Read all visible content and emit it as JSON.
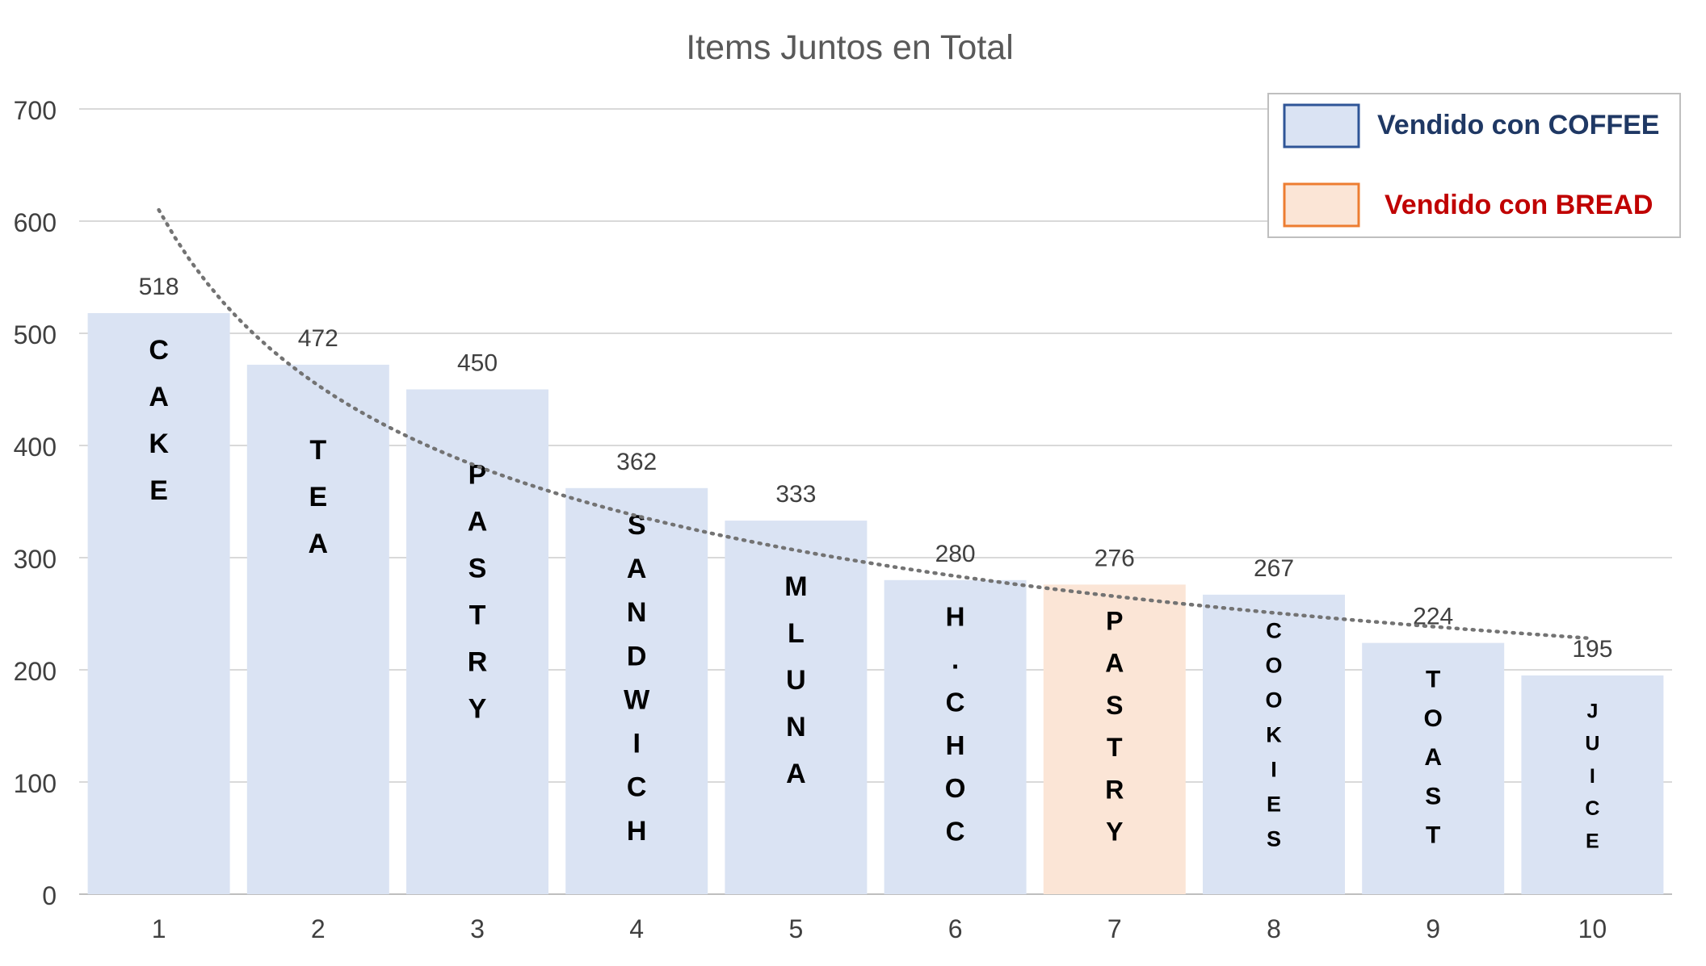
{
  "chart_data": {
    "type": "bar",
    "title": "Items Juntos en Total",
    "xlabel": "",
    "ylabel": "",
    "ylim": [
      0,
      700
    ],
    "yticks": [
      0,
      100,
      200,
      300,
      400,
      500,
      600,
      700
    ],
    "categories": [
      "1",
      "2",
      "3",
      "4",
      "5",
      "6",
      "7",
      "8",
      "9",
      "10"
    ],
    "values": [
      518,
      472,
      450,
      362,
      333,
      280,
      276,
      267,
      224,
      195
    ],
    "bar_labels": [
      "CAKE",
      "TEA",
      "PASTRY",
      "SANDWICH",
      "MLUNA",
      "H.CHOC",
      "PASTRY",
      "COOKIES",
      "TOAST",
      "JUICE"
    ],
    "bar_groups": [
      "coffee",
      "coffee",
      "coffee",
      "coffee",
      "coffee",
      "coffee",
      "bread",
      "coffee",
      "coffee",
      "coffee"
    ],
    "grid": true,
    "trendline": {
      "type": "power",
      "style": "dotted",
      "color": "#737373",
      "start_value": 610,
      "end_value": 228
    },
    "legend": {
      "position": "top-right",
      "items": [
        {
          "key": "coffee",
          "label": "Vendido con COFFEE",
          "fill": "#dae3f3",
          "stroke": "#2f5597",
          "text_color": "#1f3864"
        },
        {
          "key": "bread",
          "label": "Vendido con BREAD",
          "fill": "#fbe5d6",
          "stroke": "#ed7d31",
          "text_color": "#c00000"
        }
      ]
    },
    "colors": {
      "coffee": "#dae3f3",
      "bread": "#fbe5d6",
      "gridline": "#d9d9d9",
      "axis_text": "#404040",
      "title_text": "#595959"
    }
  }
}
